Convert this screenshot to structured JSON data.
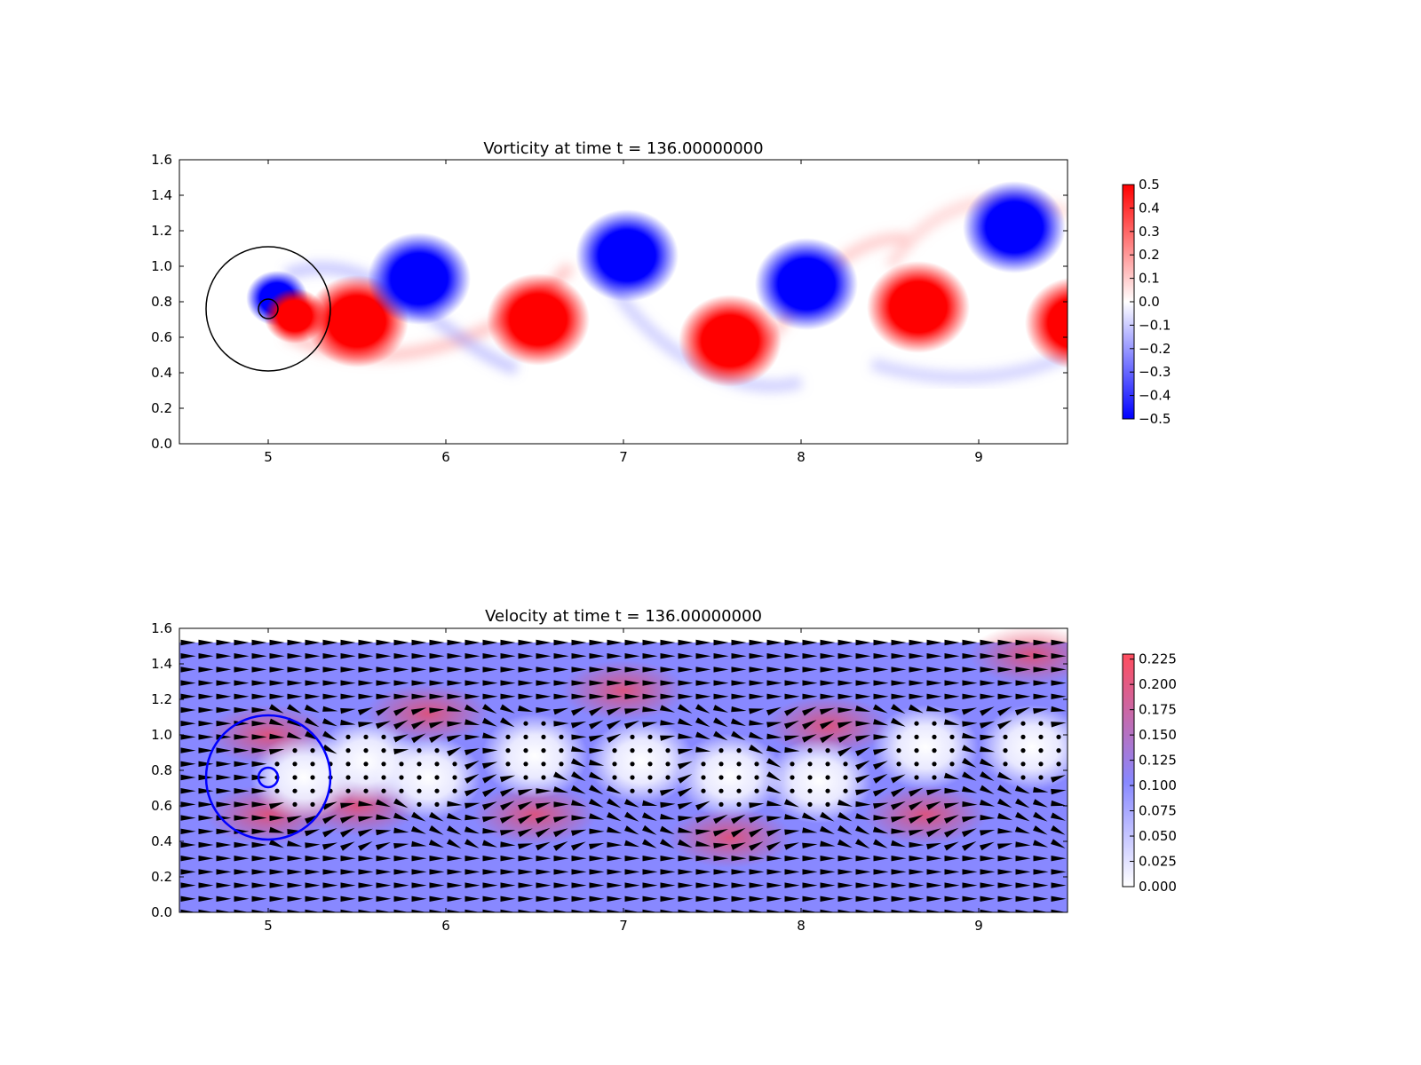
{
  "chart_data": [
    {
      "type": "heatmap",
      "title": "Vorticity at time t =   136.00000000",
      "xlabel": "",
      "ylabel": "",
      "xlim": [
        4.5,
        9.5
      ],
      "ylim": [
        0.0,
        1.6
      ],
      "xticks": [
        "5",
        "6",
        "7",
        "8",
        "9"
      ],
      "yticks": [
        "0.0",
        "0.2",
        "0.4",
        "0.6",
        "0.8",
        "1.0",
        "1.2",
        "1.4",
        "1.6"
      ],
      "colormap": "bwr",
      "colors": {
        "negative": "#0000ff",
        "zero": "#ffffff",
        "positive": "#ff0000"
      },
      "colorbar": {
        "range": [
          -0.5,
          0.5
        ],
        "ticks": [
          "0.5",
          "0.4",
          "0.3",
          "0.2",
          "0.1",
          "0.0",
          "−0.1",
          "−0.2",
          "−0.3",
          "−0.4",
          "−0.5"
        ]
      },
      "vortices": [
        {
          "x": 5.05,
          "y": 0.82,
          "value": -0.5
        },
        {
          "x": 5.15,
          "y": 0.72,
          "value": 0.5
        },
        {
          "x": 5.5,
          "y": 0.69,
          "value": 0.5
        },
        {
          "x": 5.85,
          "y": 0.93,
          "value": -0.5
        },
        {
          "x": 6.52,
          "y": 0.7,
          "value": 0.5
        },
        {
          "x": 7.02,
          "y": 1.06,
          "value": -0.5
        },
        {
          "x": 7.6,
          "y": 0.58,
          "value": 0.5
        },
        {
          "x": 8.03,
          "y": 0.9,
          "value": -0.5
        },
        {
          "x": 8.66,
          "y": 0.77,
          "value": 0.5
        },
        {
          "x": 9.2,
          "y": 1.22,
          "value": -0.5
        },
        {
          "x": 9.55,
          "y": 0.68,
          "value": 0.5
        }
      ],
      "circles": [
        {
          "cx": 5.0,
          "cy": 0.76,
          "r": 0.35
        },
        {
          "cx": 5.0,
          "cy": 0.76,
          "r": 0.055
        }
      ],
      "circle_color": "#000000"
    },
    {
      "type": "heatmap",
      "title": "Velocity at time t =   136.00000000",
      "xlabel": "",
      "ylabel": "",
      "xlim": [
        4.5,
        9.5
      ],
      "ylim": [
        0.0,
        1.6
      ],
      "xticks": [
        "5",
        "6",
        "7",
        "8",
        "9"
      ],
      "yticks": [
        "0.0",
        "0.2",
        "0.4",
        "0.6",
        "0.8",
        "1.0",
        "1.2",
        "1.4",
        "1.6"
      ],
      "field_extent_y": [
        0.0,
        1.52
      ],
      "overlay": "quiver",
      "colors": {
        "low": "#ffffff",
        "mid": "#8888ff",
        "high": "#ff4444"
      },
      "colorbar": {
        "range": [
          0.0,
          0.23
        ],
        "ticks": [
          "0.225",
          "0.200",
          "0.175",
          "0.150",
          "0.125",
          "0.100",
          "0.075",
          "0.050",
          "0.025",
          "0.000"
        ]
      },
      "slow_regions": [
        {
          "x": 5.2,
          "y": 0.76
        },
        {
          "x": 5.55,
          "y": 0.85
        },
        {
          "x": 5.9,
          "y": 0.76
        },
        {
          "x": 6.5,
          "y": 0.88
        },
        {
          "x": 7.1,
          "y": 0.85
        },
        {
          "x": 7.6,
          "y": 0.77
        },
        {
          "x": 8.1,
          "y": 0.74
        },
        {
          "x": 8.7,
          "y": 0.93
        },
        {
          "x": 9.3,
          "y": 0.93
        }
      ],
      "fast_regions": [
        {
          "x": 5.0,
          "y": 0.55
        },
        {
          "x": 5.0,
          "y": 1.0
        },
        {
          "x": 5.5,
          "y": 0.6
        },
        {
          "x": 5.9,
          "y": 1.12
        },
        {
          "x": 6.5,
          "y": 0.55
        },
        {
          "x": 7.0,
          "y": 1.25
        },
        {
          "x": 7.6,
          "y": 0.42
        },
        {
          "x": 8.15,
          "y": 1.05
        },
        {
          "x": 8.7,
          "y": 0.55
        },
        {
          "x": 9.3,
          "y": 1.45
        }
      ],
      "circles": [
        {
          "cx": 5.0,
          "cy": 0.76,
          "r": 0.35
        },
        {
          "cx": 5.0,
          "cy": 0.76,
          "r": 0.055
        }
      ],
      "circle_color": "#0000ff"
    }
  ]
}
